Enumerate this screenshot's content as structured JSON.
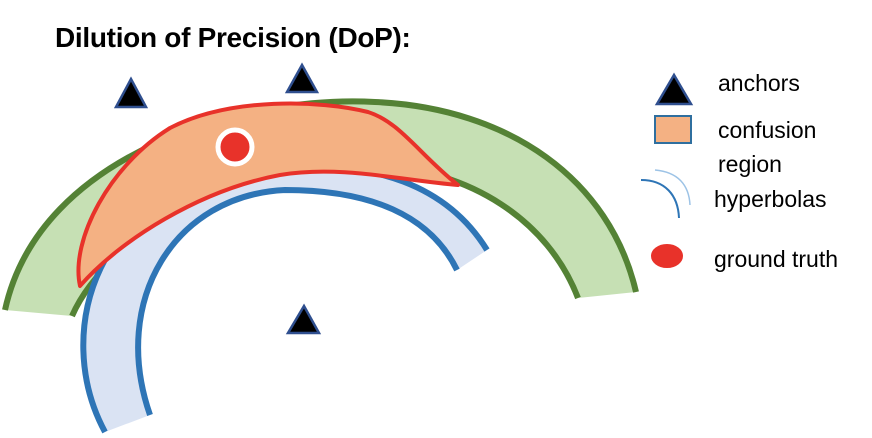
{
  "title": "Dilution of Precision (DoP):",
  "legend": {
    "anchors": "anchors",
    "confusion_line1": "confusion",
    "confusion_line2": "region",
    "hyperbolas": "hyperbolas",
    "ground_truth": "ground truth"
  },
  "colors": {
    "green_band_fill": "#c6e0b4",
    "green_band_stroke": "#548235",
    "blue_band_fill": "#dae3f3",
    "blue_band_stroke": "#2e75b6",
    "confusion_fill": "#f4b183",
    "confusion_stroke": "#e8322a",
    "ground_truth": "#e8322a",
    "anchor_fill": "#000000",
    "anchor_stroke": "#2f4f8f"
  },
  "icons": {
    "anchor": "triangle-icon",
    "ground_truth": "red-dot-icon",
    "hyperbola": "arc-icon",
    "confusion": "orange-square-icon"
  }
}
